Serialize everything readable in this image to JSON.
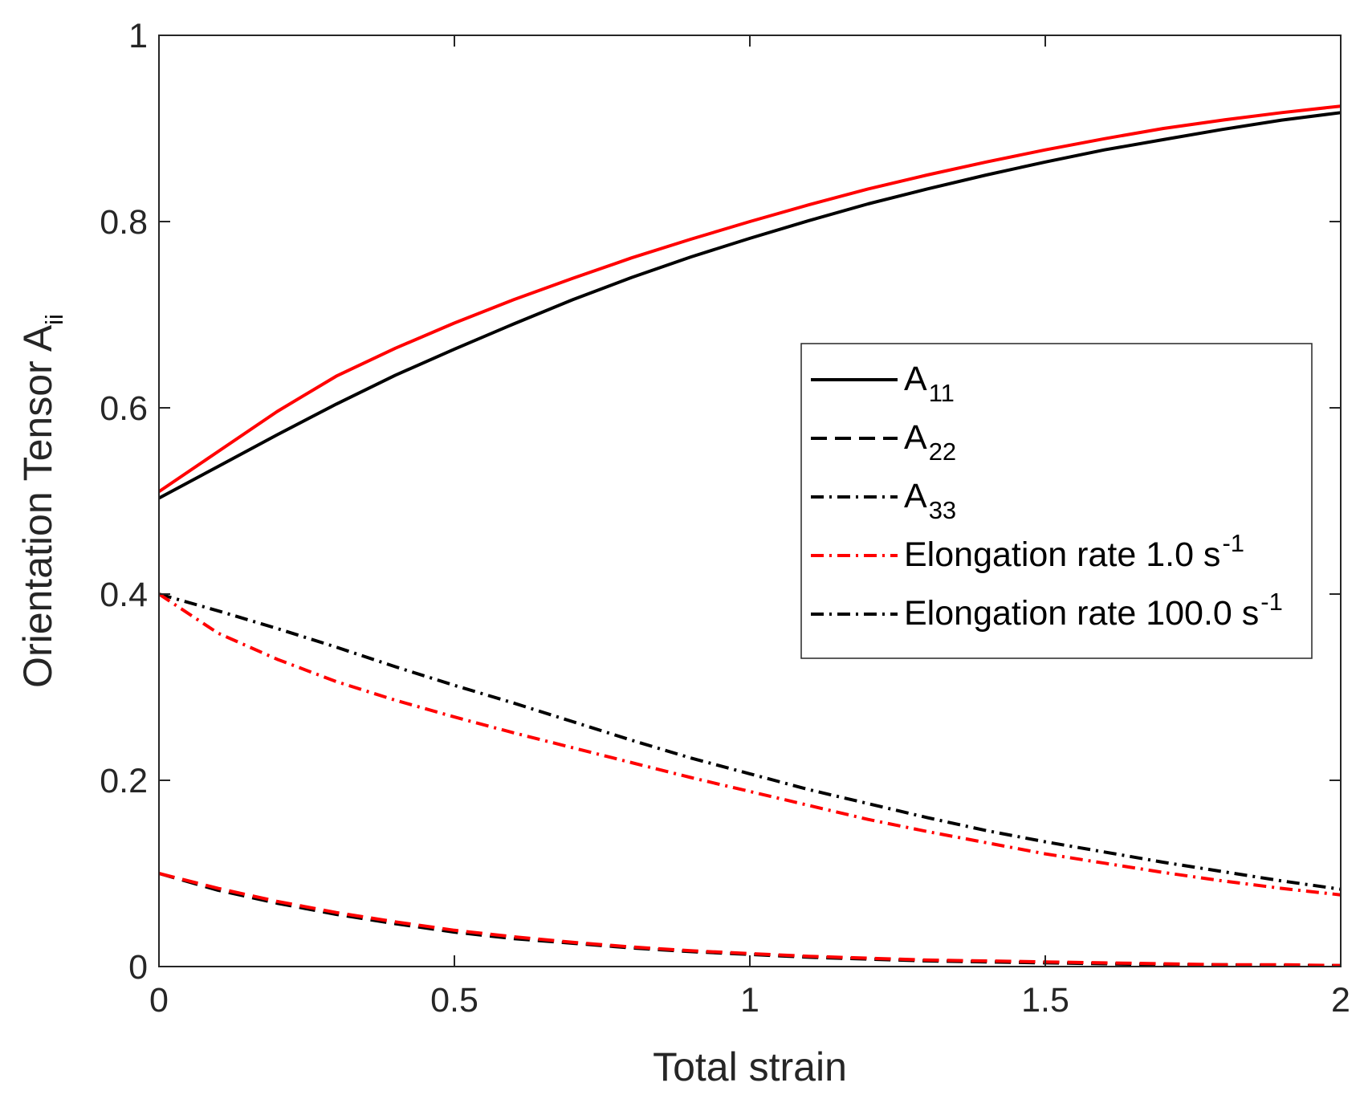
{
  "chart_data": {
    "type": "line",
    "title": "",
    "xlabel": "Total strain",
    "ylabel": {
      "base": "Orientation Tensor A",
      "sub": "ii"
    },
    "xlim": [
      0,
      2
    ],
    "ylim": [
      0,
      1
    ],
    "xticks": [
      "0",
      "0.5",
      "1",
      "1.5",
      "2"
    ],
    "yticks": [
      "0",
      "0.2",
      "0.4",
      "0.6",
      "0.8",
      "1"
    ],
    "grid": false,
    "box": true,
    "legend_position": "center-right",
    "legend": [
      {
        "base": "A",
        "sub": "11",
        "sup": "",
        "style": "solid",
        "color": "#000000"
      },
      {
        "base": "A",
        "sub": "22",
        "sup": "",
        "style": "dashed",
        "color": "#000000"
      },
      {
        "base": "A",
        "sub": "33",
        "sup": "",
        "style": "dashdot",
        "color": "#000000"
      },
      {
        "base": "Elongation rate 1.0 s",
        "sub": "",
        "sup": "-1",
        "style": "dashdot",
        "color": "#ff0000"
      },
      {
        "base": "Elongation rate 100.0 s",
        "sub": "",
        "sup": "-1",
        "style": "dashdot",
        "color": "#000000"
      }
    ],
    "x": [
      0,
      0.1,
      0.2,
      0.3,
      0.4,
      0.5,
      0.6,
      0.7,
      0.8,
      0.9,
      1.0,
      1.1,
      1.2,
      1.3,
      1.4,
      1.5,
      1.6,
      1.7,
      1.8,
      1.9,
      2.0
    ],
    "series": [
      {
        "component": "A11",
        "rate": "100.0",
        "color": "#000000",
        "style": "solid",
        "values": [
          0.503,
          0.537,
          0.571,
          0.604,
          0.635,
          0.663,
          0.69,
          0.716,
          0.74,
          0.762,
          0.782,
          0.801,
          0.819,
          0.835,
          0.85,
          0.864,
          0.877,
          0.888,
          0.899,
          0.909,
          0.917
        ]
      },
      {
        "component": "A11",
        "rate": "1.0",
        "color": "#ff0000",
        "style": "solid",
        "values": [
          0.51,
          0.553,
          0.596,
          0.634,
          0.664,
          0.691,
          0.716,
          0.739,
          0.761,
          0.781,
          0.8,
          0.818,
          0.835,
          0.85,
          0.864,
          0.877,
          0.889,
          0.9,
          0.909,
          0.917,
          0.924
        ]
      },
      {
        "component": "A22",
        "rate": "100.0",
        "color": "#000000",
        "style": "dashed",
        "values": [
          0.1,
          0.082,
          0.068,
          0.056,
          0.046,
          0.037,
          0.03,
          0.025,
          0.02,
          0.016,
          0.013,
          0.01,
          0.008,
          0.006,
          0.005,
          0.004,
          0.003,
          0.002,
          0.002,
          0.001,
          0.001
        ]
      },
      {
        "component": "A22",
        "rate": "1.0",
        "color": "#ff0000",
        "style": "dashed",
        "values": [
          0.1,
          0.084,
          0.07,
          0.058,
          0.048,
          0.039,
          0.032,
          0.026,
          0.021,
          0.017,
          0.014,
          0.011,
          0.009,
          0.007,
          0.006,
          0.005,
          0.004,
          0.003,
          0.002,
          0.002,
          0.001
        ]
      },
      {
        "component": "A33",
        "rate": "100.0",
        "color": "#000000",
        "style": "dashdot",
        "values": [
          0.4,
          0.382,
          0.363,
          0.343,
          0.322,
          0.302,
          0.283,
          0.263,
          0.243,
          0.224,
          0.207,
          0.19,
          0.175,
          0.16,
          0.146,
          0.134,
          0.123,
          0.112,
          0.102,
          0.092,
          0.083
        ]
      },
      {
        "component": "A33",
        "rate": "1.0",
        "color": "#ff0000",
        "style": "dashdot",
        "values": [
          0.4,
          0.358,
          0.33,
          0.306,
          0.286,
          0.268,
          0.251,
          0.235,
          0.219,
          0.203,
          0.188,
          0.173,
          0.158,
          0.145,
          0.133,
          0.121,
          0.111,
          0.101,
          0.092,
          0.084,
          0.077
        ]
      }
    ]
  }
}
